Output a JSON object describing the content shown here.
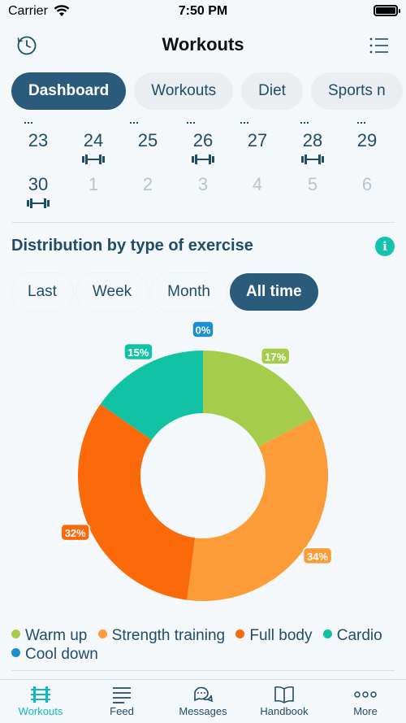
{
  "status_bar": {
    "carrier": "Carrier",
    "time": "7:50 PM"
  },
  "header": {
    "title": "Workouts",
    "left_icon": "history-icon",
    "right_icon": "list-icon"
  },
  "tabs": [
    {
      "label": "Dashboard",
      "active": true
    },
    {
      "label": "Workouts",
      "active": false
    },
    {
      "label": "Diet",
      "active": false
    },
    {
      "label": "Sports n",
      "active": false
    }
  ],
  "calendar": {
    "row1": [
      {
        "day": "23",
        "workout": false
      },
      {
        "day": "24",
        "workout": true
      },
      {
        "day": "25",
        "workout": false
      },
      {
        "day": "26",
        "workout": true
      },
      {
        "day": "27",
        "workout": false
      },
      {
        "day": "28",
        "workout": true
      },
      {
        "day": "29",
        "workout": false
      }
    ],
    "row2": [
      {
        "day": "30",
        "workout": true,
        "faded": false
      },
      {
        "day": "1",
        "workout": false,
        "faded": true
      },
      {
        "day": "2",
        "workout": false,
        "faded": true
      },
      {
        "day": "3",
        "workout": false,
        "faded": true
      },
      {
        "day": "4",
        "workout": false,
        "faded": true
      },
      {
        "day": "5",
        "workout": false,
        "faded": true
      },
      {
        "day": "6",
        "workout": false,
        "faded": true
      }
    ]
  },
  "distribution": {
    "title": "Distribution by type of exercise",
    "info_icon": "info-icon",
    "periods": [
      {
        "label": "Last",
        "active": false
      },
      {
        "label": "Week",
        "active": false
      },
      {
        "label": "Month",
        "active": false
      },
      {
        "label": "All time",
        "active": true
      }
    ]
  },
  "chart_data": {
    "type": "pie",
    "donut": true,
    "title": "",
    "slices": [
      {
        "name": "Warm up",
        "value": 17,
        "label": "17%",
        "color": "#a5cd4b"
      },
      {
        "name": "Strength training",
        "value": 34,
        "label": "34%",
        "color": "#fb9c38"
      },
      {
        "name": "Full body",
        "value": 32,
        "label": "32%",
        "color": "#fb6a0a"
      },
      {
        "name": "Cardio",
        "value": 15,
        "label": "15%",
        "color": "#11c3a4"
      },
      {
        "name": "Cool down",
        "value": 0,
        "label": "0%",
        "color": "#1a8fcf"
      }
    ],
    "legend_position": "bottom"
  },
  "tabbar": [
    {
      "label": "Workouts",
      "icon": "dumbbell-icon",
      "active": true
    },
    {
      "label": "Feed",
      "icon": "feed-icon",
      "active": false
    },
    {
      "label": "Messages",
      "icon": "messages-icon",
      "active": false
    },
    {
      "label": "Handbook",
      "icon": "book-icon",
      "active": false
    },
    {
      "label": "More",
      "icon": "more-icon",
      "active": false
    }
  ]
}
